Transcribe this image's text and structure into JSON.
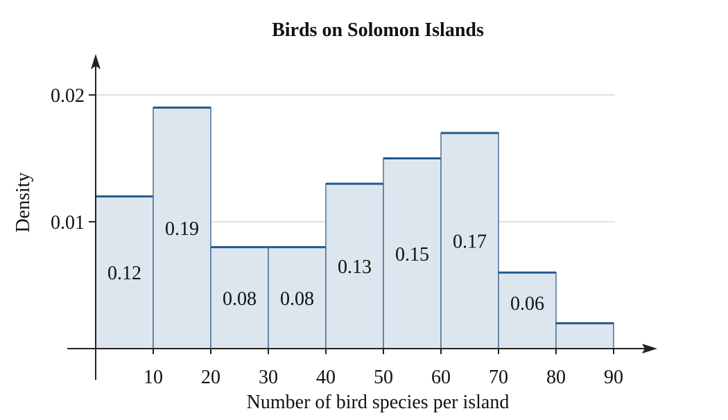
{
  "chart_data": {
    "type": "bar",
    "title": "Birds on Solomon Islands",
    "xlabel": "Number of bird species per island",
    "ylabel": "Density",
    "bins": [
      {
        "x0": 0,
        "x1": 10,
        "density": 0.012,
        "label": "0.12"
      },
      {
        "x0": 10,
        "x1": 20,
        "density": 0.019,
        "label": "0.19"
      },
      {
        "x0": 20,
        "x1": 30,
        "density": 0.008,
        "label": "0.08"
      },
      {
        "x0": 30,
        "x1": 40,
        "density": 0.008,
        "label": "0.08"
      },
      {
        "x0": 40,
        "x1": 50,
        "density": 0.013,
        "label": "0.13"
      },
      {
        "x0": 50,
        "x1": 60,
        "density": 0.015,
        "label": "0.15"
      },
      {
        "x0": 60,
        "x1": 70,
        "density": 0.017,
        "label": "0.17"
      },
      {
        "x0": 70,
        "x1": 80,
        "density": 0.006,
        "label": "0.06"
      },
      {
        "x0": 80,
        "x1": 90,
        "density": 0.002,
        "label": ""
      }
    ],
    "x_ticks": [
      10,
      20,
      30,
      40,
      50,
      60,
      70,
      80,
      90
    ],
    "x_tick_labels": [
      "10",
      "20",
      "30",
      "40",
      "50",
      "60",
      "70",
      "80",
      "90"
    ],
    "y_ticks": [
      0.01,
      0.02
    ],
    "y_tick_labels": [
      "0.01",
      "0.02"
    ],
    "xlim": [
      0,
      90
    ],
    "ylim": [
      0,
      0.02
    ],
    "grid": "horizontal",
    "bar_fill": "#dde6ef",
    "bar_stroke": "#4a7196",
    "bar_top_stroke": "#1f5a91",
    "grid_color": "#cfcfcf",
    "axis_color": "#222222"
  }
}
